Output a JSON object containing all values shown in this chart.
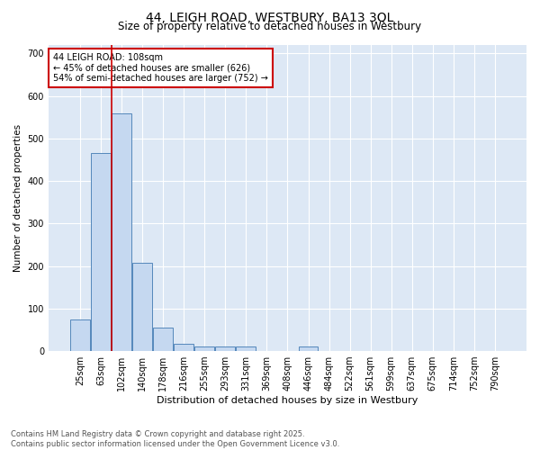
{
  "title": "44, LEIGH ROAD, WESTBURY, BA13 3QL",
  "subtitle": "Size of property relative to detached houses in Westbury",
  "xlabel": "Distribution of detached houses by size in Westbury",
  "ylabel": "Number of detached properties",
  "categories": [
    "25sqm",
    "63sqm",
    "102sqm",
    "140sqm",
    "178sqm",
    "216sqm",
    "255sqm",
    "293sqm",
    "331sqm",
    "369sqm",
    "408sqm",
    "446sqm",
    "484sqm",
    "522sqm",
    "561sqm",
    "599sqm",
    "637sqm",
    "675sqm",
    "714sqm",
    "752sqm",
    "790sqm"
  ],
  "values": [
    75,
    465,
    560,
    207,
    55,
    18,
    10,
    10,
    10,
    0,
    0,
    10,
    0,
    0,
    0,
    0,
    0,
    0,
    0,
    0,
    0
  ],
  "bar_color": "#c5d8f0",
  "bar_edge_color": "#5588bb",
  "figure_bg_color": "#ffffff",
  "plot_bg_color": "#dde8f5",
  "red_line_index": 2,
  "annotation_text": "44 LEIGH ROAD: 108sqm\n← 45% of detached houses are smaller (626)\n54% of semi-detached houses are larger (752) →",
  "annotation_box_facecolor": "#ffffff",
  "annotation_border_color": "#cc0000",
  "ylim": [
    0,
    720
  ],
  "yticks": [
    0,
    100,
    200,
    300,
    400,
    500,
    600,
    700
  ],
  "footer": "Contains HM Land Registry data © Crown copyright and database right 2025.\nContains public sector information licensed under the Open Government Licence v3.0.",
  "title_fontsize": 10,
  "subtitle_fontsize": 8.5,
  "xlabel_fontsize": 8,
  "ylabel_fontsize": 7.5,
  "tick_fontsize": 7,
  "annotation_fontsize": 7,
  "footer_fontsize": 6
}
